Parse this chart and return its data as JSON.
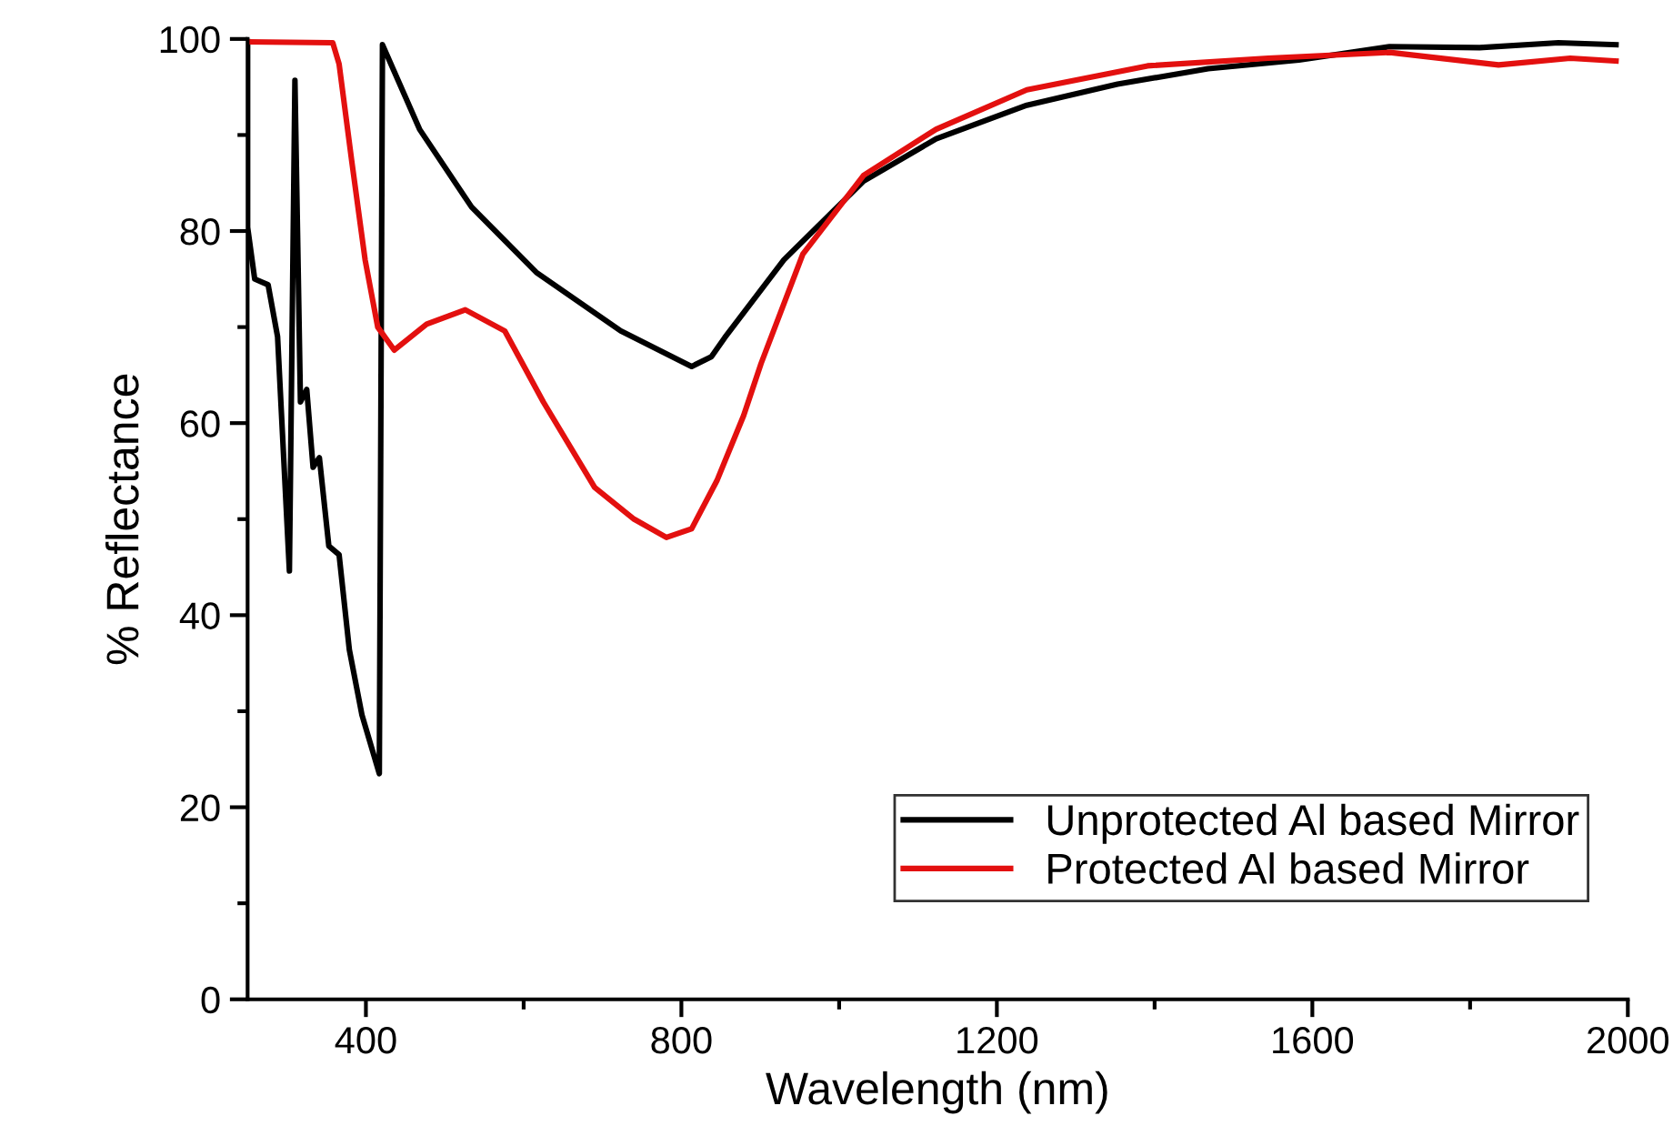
{
  "chart_data": {
    "type": "line",
    "xlabel": "Wavelength (nm)",
    "ylabel": "% Reflectance",
    "xlim": [
      250,
      2000
    ],
    "xticks": [
      400,
      800,
      1200,
      1600,
      2000
    ],
    "ylim": [
      0,
      100
    ],
    "yticks": [
      0,
      20,
      40,
      60,
      80,
      100
    ],
    "grid": false,
    "legend": "bottom right",
    "line_style": "solid",
    "marker": "none",
    "series": [
      {
        "name": "Unprotected Al based Mirror",
        "color": "#000000",
        "x": [
          250,
          250,
          259,
          276,
          288,
          303,
          310,
          317,
          325,
          333,
          341,
          353,
          366,
          379,
          395,
          417,
          421,
          468,
          534,
          616,
          723,
          813,
          838,
          855,
          930,
          1031,
          1123,
          1238,
          1353,
          1468,
          1583,
          1698,
          1812,
          1912,
          1985
        ],
        "values": [
          99.8,
          80.4,
          75,
          74.4,
          69,
          44.6,
          95.7,
          62.2,
          63.5,
          55.4,
          56.4,
          47.2,
          46.3,
          36.4,
          29.6,
          23.5,
          99.4,
          90.6,
          82.5,
          75.7,
          69.6,
          65.9,
          66.9,
          68.9,
          77,
          85.2,
          89.6,
          93.1,
          95.3,
          96.9,
          97.8,
          99.2,
          99.1,
          99.6,
          99.4
        ]
      },
      {
        "name": "Protected Al based Mirror",
        "color": "#e3100f",
        "x": [
          250,
          358,
          366,
          382,
          399,
          415,
          436,
          477,
          526,
          576,
          625,
          690,
          740,
          781,
          813,
          845,
          879,
          901,
          954,
          1031,
          1123,
          1238,
          1391,
          1544,
          1698,
          1836,
          1927,
          1985
        ],
        "values": [
          99.7,
          99.6,
          97.4,
          87.3,
          77,
          70,
          67.6,
          70.3,
          71.8,
          69.6,
          62.2,
          53.3,
          50,
          48.1,
          49,
          54,
          60.8,
          66.2,
          77.6,
          85.8,
          90.6,
          94.7,
          97.2,
          98,
          98.6,
          97.3,
          98,
          97.7
        ]
      }
    ]
  }
}
